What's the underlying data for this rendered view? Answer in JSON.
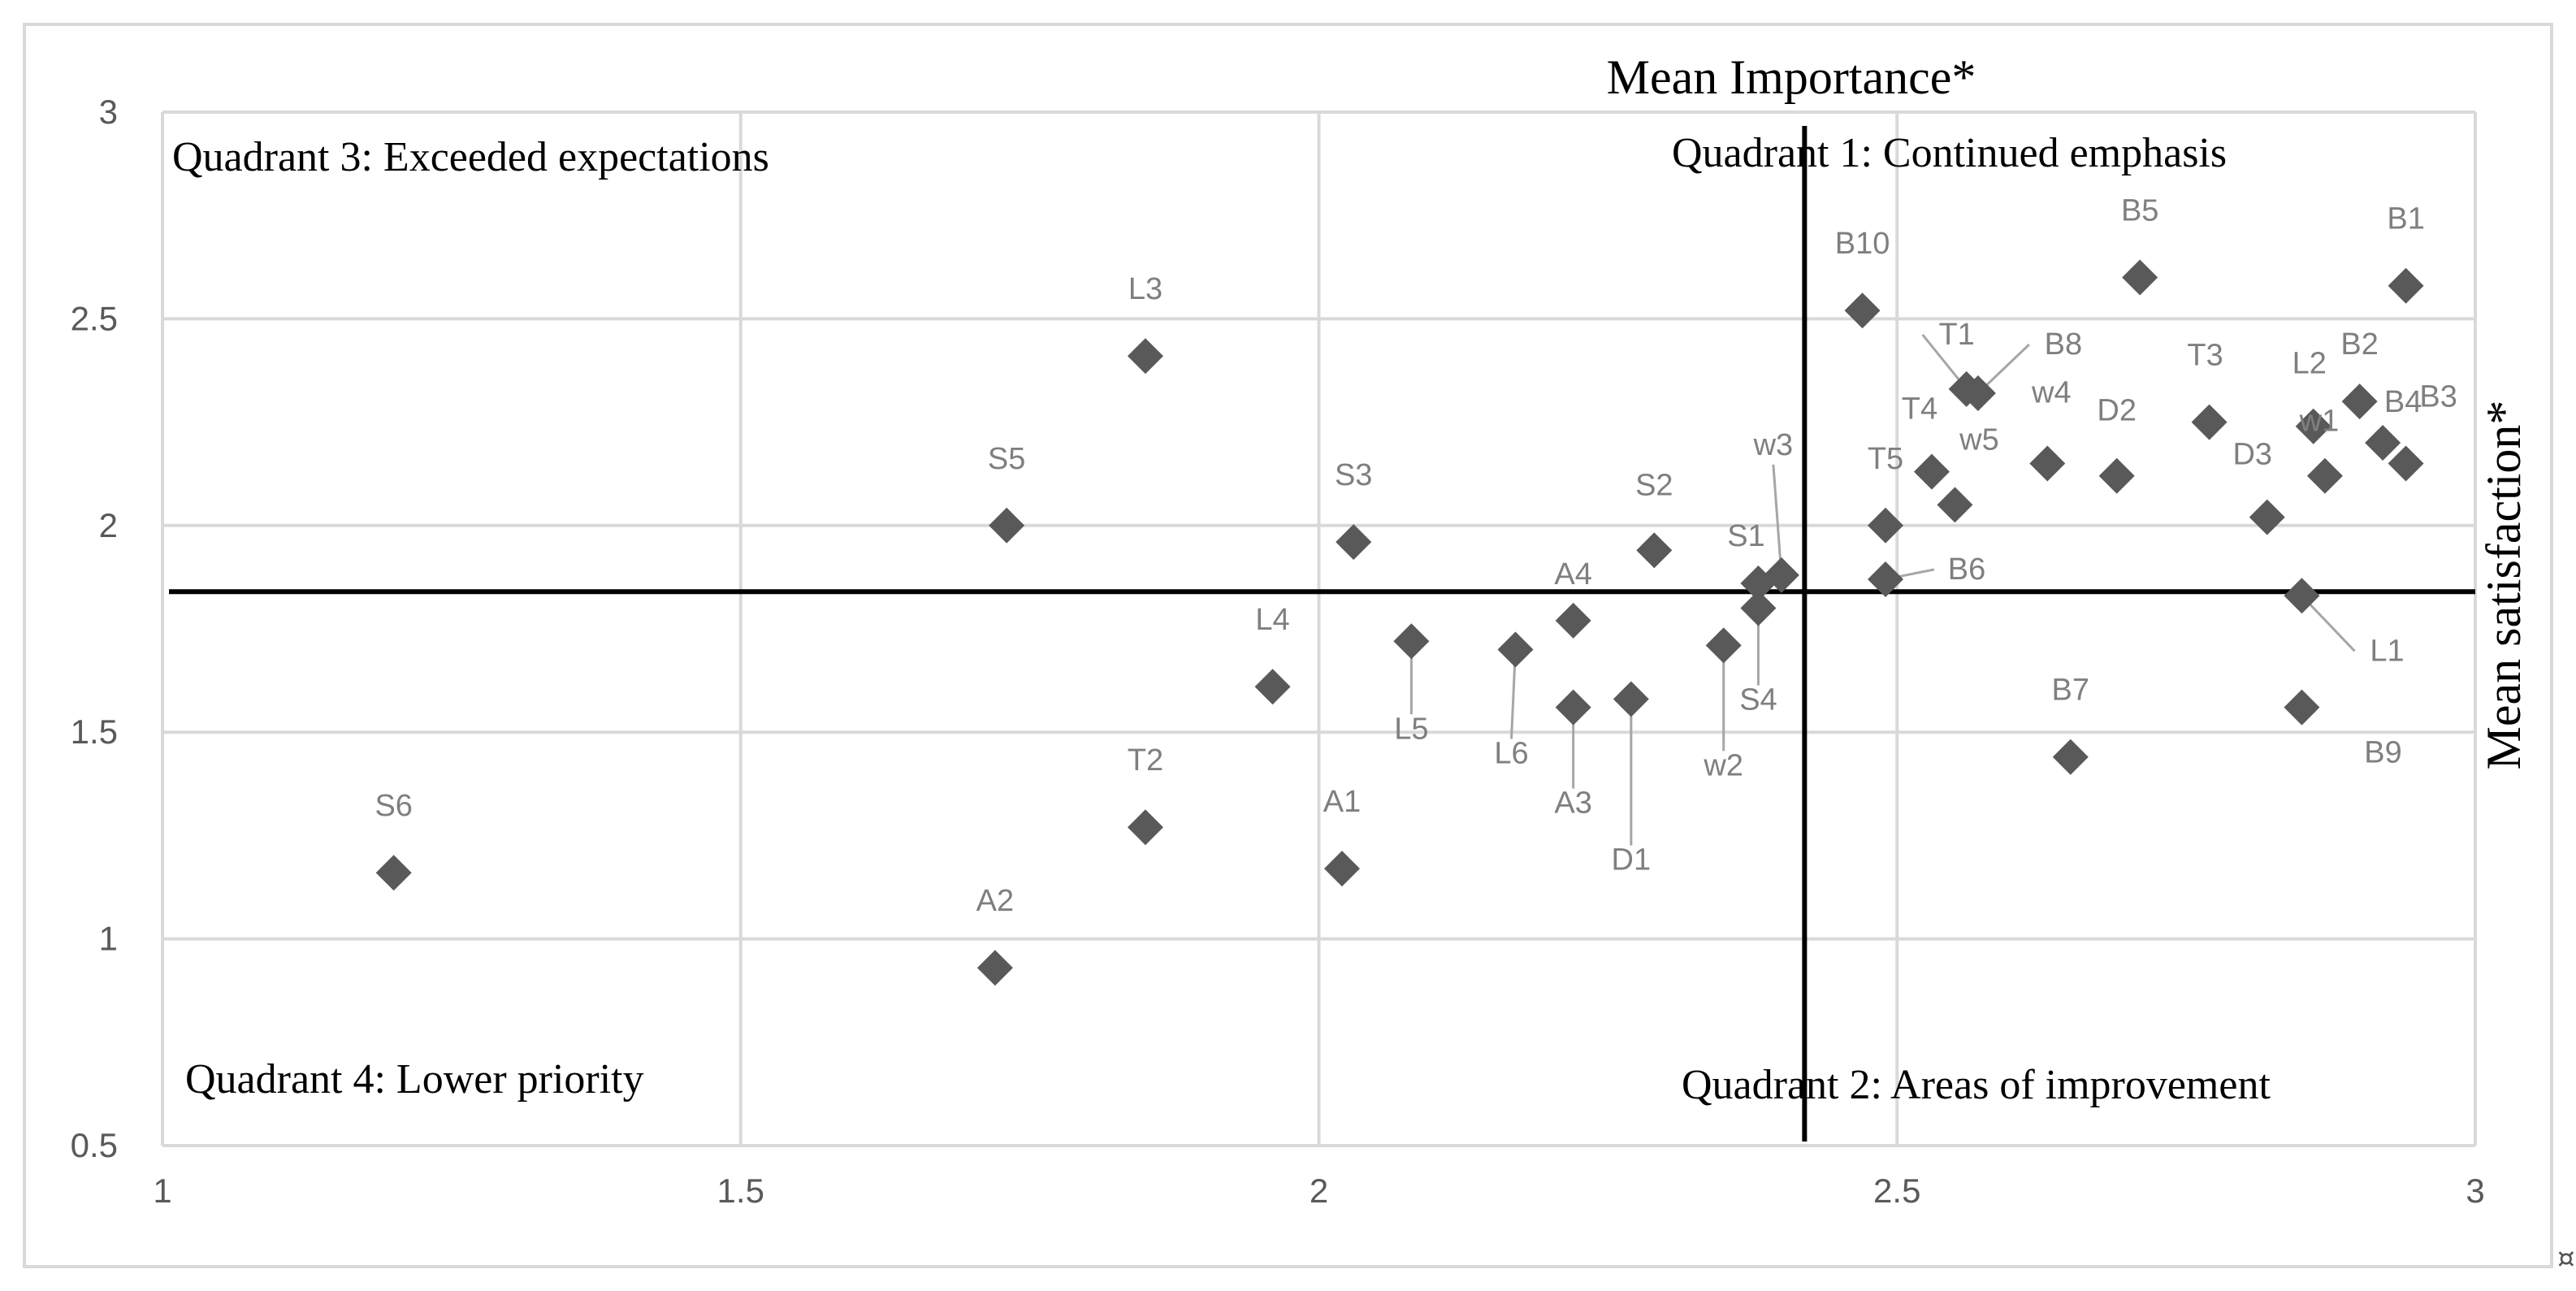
{
  "chart_data": {
    "type": "scatter",
    "title": "",
    "xlabel": "Mean Importance*",
    "ylabel": "Mean satisfaction*",
    "xlim": [
      1,
      3
    ],
    "ylim": [
      0.5,
      3
    ],
    "xticks": [
      "1",
      "1.5",
      "2",
      "2.5",
      "3"
    ],
    "yticks": [
      "0.5",
      "1",
      "1.5",
      "2",
      "2.5",
      "3"
    ],
    "grid": true,
    "reference_lines": {
      "x": 2.42,
      "y": 1.84
    },
    "quadrants": {
      "q1": "Quadrant 1: Continued emphasis",
      "q2": "Quadrant 2: Areas of improvement",
      "q3": "Quadrant 3: Exceeded expectations",
      "q4": "Quadrant 4: Lower priority"
    },
    "corner_mark": "¤",
    "points": [
      {
        "label": "B1",
        "x": 2.94,
        "y": 2.58
      },
      {
        "label": "B5",
        "x": 2.71,
        "y": 2.6
      },
      {
        "label": "B10",
        "x": 2.47,
        "y": 2.52
      },
      {
        "label": "L3",
        "x": 1.85,
        "y": 2.41
      },
      {
        "label": "T1",
        "x": 2.56,
        "y": 2.33
      },
      {
        "label": "B8",
        "x": 2.57,
        "y": 2.32
      },
      {
        "label": "B2",
        "x": 2.9,
        "y": 2.3
      },
      {
        "label": "T3",
        "x": 2.77,
        "y": 2.25
      },
      {
        "label": "L2",
        "x": 2.86,
        "y": 2.24
      },
      {
        "label": "B4",
        "x": 2.92,
        "y": 2.2
      },
      {
        "label": "w1",
        "x": 2.87,
        "y": 2.12
      },
      {
        "label": "B3",
        "x": 2.94,
        "y": 2.15
      },
      {
        "label": "w4",
        "x": 2.63,
        "y": 2.15
      },
      {
        "label": "T4",
        "x": 2.53,
        "y": 2.13
      },
      {
        "label": "D2",
        "x": 2.69,
        "y": 2.12
      },
      {
        "label": "w5",
        "x": 2.55,
        "y": 2.05
      },
      {
        "label": "D3",
        "x": 2.82,
        "y": 2.02
      },
      {
        "label": "T5",
        "x": 2.49,
        "y": 2.0
      },
      {
        "label": "S5",
        "x": 1.73,
        "y": 2.0
      },
      {
        "label": "S3",
        "x": 2.03,
        "y": 1.96
      },
      {
        "label": "S2",
        "x": 2.29,
        "y": 1.94
      },
      {
        "label": "w3",
        "x": 2.4,
        "y": 1.88
      },
      {
        "label": "S1",
        "x": 2.38,
        "y": 1.86
      },
      {
        "label": "B6",
        "x": 2.49,
        "y": 1.87
      },
      {
        "label": "L1",
        "x": 2.85,
        "y": 1.83
      },
      {
        "label": "S4",
        "x": 2.38,
        "y": 1.8
      },
      {
        "label": "A4",
        "x": 2.22,
        "y": 1.77
      },
      {
        "label": "L5",
        "x": 2.08,
        "y": 1.72
      },
      {
        "label": "w2",
        "x": 2.35,
        "y": 1.71
      },
      {
        "label": "L6",
        "x": 2.17,
        "y": 1.7
      },
      {
        "label": "L4",
        "x": 1.96,
        "y": 1.61
      },
      {
        "label": "D1",
        "x": 2.27,
        "y": 1.58
      },
      {
        "label": "A3",
        "x": 2.22,
        "y": 1.56
      },
      {
        "label": "B9",
        "x": 2.85,
        "y": 1.56
      },
      {
        "label": "B7",
        "x": 2.65,
        "y": 1.44
      },
      {
        "label": "T2",
        "x": 1.85,
        "y": 1.27
      },
      {
        "label": "A1",
        "x": 2.02,
        "y": 1.17
      },
      {
        "label": "S6",
        "x": 1.2,
        "y": 1.16
      },
      {
        "label": "A2",
        "x": 1.72,
        "y": 0.93
      }
    ]
  }
}
